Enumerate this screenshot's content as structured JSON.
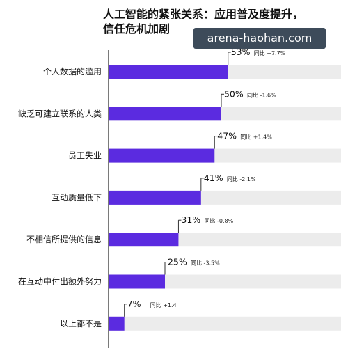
{
  "title_line1": "人工智能的紧张关系：应用普及度提升，",
  "title_line2": "信任危机加剧",
  "watermark": "arena-haohan.com",
  "colors": {
    "bar": "#5b2be0",
    "track": "#ececec",
    "axis": "#333333"
  },
  "chart_data": {
    "type": "bar",
    "orientation": "horizontal",
    "title": "人工智能的紧张关系：应用普及度提升，信任危机加剧",
    "categories": [
      "个人数据的滥用",
      "缺乏可建立联系的人类",
      "员工失业",
      "互动质量低下",
      "不相信所提供的信息",
      "在互动中付出额外努力",
      "以上都不是"
    ],
    "values": [
      53,
      50,
      47,
      41,
      31,
      25,
      7
    ],
    "value_labels": [
      "53%",
      "50%",
      "47%",
      "41%",
      "31%",
      "25%",
      "7%"
    ],
    "yoy_labels": [
      "同比 +7.7%",
      "同比 -1.6%",
      "同比 +1.4%",
      "同比 -2.1%",
      "同比 -0.8%",
      "同比 -3.5%",
      "同比 +1.4"
    ],
    "xlim": [
      0,
      100
    ]
  }
}
